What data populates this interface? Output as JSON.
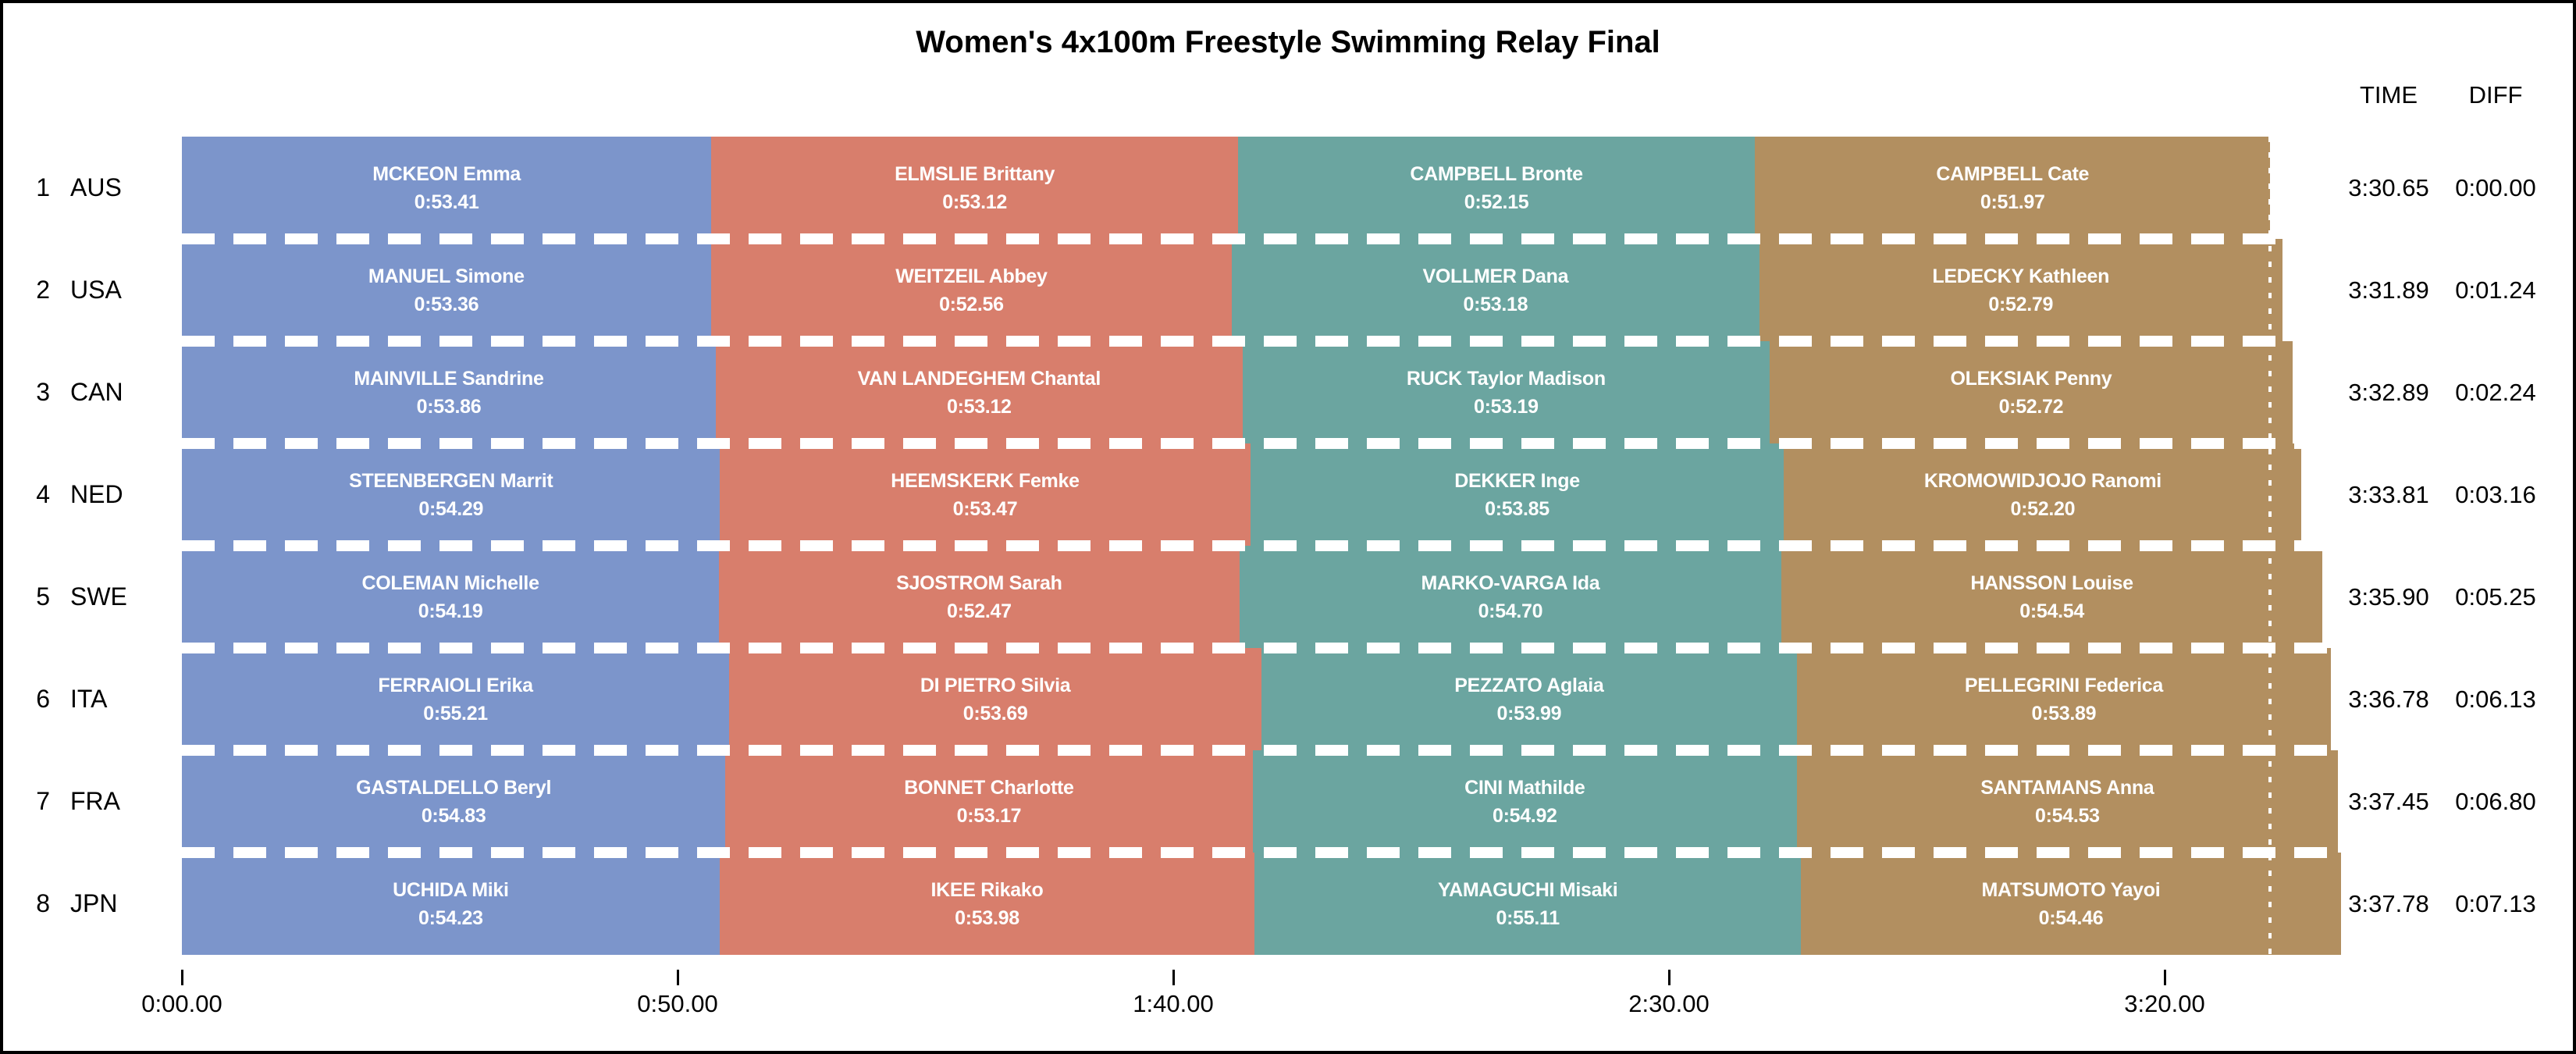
{
  "title": "Women's 4x100m Freestyle Swimming Relay Final",
  "columns": {
    "time_header": "TIME",
    "diff_header": "DIFF"
  },
  "chart_data": {
    "type": "bar",
    "orientation": "horizontal",
    "stacked": true,
    "title": "Women's 4x100m Freestyle Swimming Relay Final",
    "x_axis": {
      "unit": "minutes:seconds",
      "range_seconds": [
        0,
        220
      ],
      "ticks": [
        {
          "seconds": 0,
          "label": "0:00.00"
        },
        {
          "seconds": 50,
          "label": "0:50.00"
        },
        {
          "seconds": 100,
          "label": "1:40.00"
        },
        {
          "seconds": 150,
          "label": "2:30.00"
        },
        {
          "seconds": 200,
          "label": "3:20.00"
        }
      ]
    },
    "leg_colors": [
      "#7C95CB",
      "#D87E6C",
      "#6BA5A0",
      "#B28F60"
    ],
    "reference_line_seconds": 210.65,
    "teams": [
      {
        "rank": "1",
        "noc": "AUS",
        "time": "3:30.65",
        "diff": "0:00.00",
        "total_seconds": 210.65,
        "legs": [
          {
            "name": "MCKEON Emma",
            "split": "0:53.41",
            "seconds": 53.41
          },
          {
            "name": "ELMSLIE Brittany",
            "split": "0:53.12",
            "seconds": 53.12
          },
          {
            "name": "CAMPBELL Bronte",
            "split": "0:52.15",
            "seconds": 52.15
          },
          {
            "name": "CAMPBELL Cate",
            "split": "0:51.97",
            "seconds": 51.97
          }
        ]
      },
      {
        "rank": "2",
        "noc": "USA",
        "time": "3:31.89",
        "diff": "0:01.24",
        "total_seconds": 211.89,
        "legs": [
          {
            "name": "MANUEL Simone",
            "split": "0:53.36",
            "seconds": 53.36
          },
          {
            "name": "WEITZEIL Abbey",
            "split": "0:52.56",
            "seconds": 52.56
          },
          {
            "name": "VOLLMER Dana",
            "split": "0:53.18",
            "seconds": 53.18
          },
          {
            "name": "LEDECKY Kathleen",
            "split": "0:52.79",
            "seconds": 52.79
          }
        ]
      },
      {
        "rank": "3",
        "noc": "CAN",
        "time": "3:32.89",
        "diff": "0:02.24",
        "total_seconds": 212.89,
        "legs": [
          {
            "name": "MAINVILLE Sandrine",
            "split": "0:53.86",
            "seconds": 53.86
          },
          {
            "name": "VAN LANDEGHEM Chantal",
            "split": "0:53.12",
            "seconds": 53.12
          },
          {
            "name": "RUCK Taylor Madison",
            "split": "0:53.19",
            "seconds": 53.19
          },
          {
            "name": "OLEKSIAK Penny",
            "split": "0:52.72",
            "seconds": 52.72
          }
        ]
      },
      {
        "rank": "4",
        "noc": "NED",
        "time": "3:33.81",
        "diff": "0:03.16",
        "total_seconds": 213.81,
        "legs": [
          {
            "name": "STEENBERGEN Marrit",
            "split": "0:54.29",
            "seconds": 54.29
          },
          {
            "name": "HEEMSKERK Femke",
            "split": "0:53.47",
            "seconds": 53.47
          },
          {
            "name": "DEKKER Inge",
            "split": "0:53.85",
            "seconds": 53.85
          },
          {
            "name": "KROMOWIDJOJO Ranomi",
            "split": "0:52.20",
            "seconds": 52.2
          }
        ]
      },
      {
        "rank": "5",
        "noc": "SWE",
        "time": "3:35.90",
        "diff": "0:05.25",
        "total_seconds": 215.9,
        "legs": [
          {
            "name": "COLEMAN Michelle",
            "split": "0:54.19",
            "seconds": 54.19
          },
          {
            "name": "SJOSTROM Sarah",
            "split": "0:52.47",
            "seconds": 52.47
          },
          {
            "name": "MARKO-VARGA Ida",
            "split": "0:54.70",
            "seconds": 54.7
          },
          {
            "name": "HANSSON Louise",
            "split": "0:54.54",
            "seconds": 54.54
          }
        ]
      },
      {
        "rank": "6",
        "noc": "ITA",
        "time": "3:36.78",
        "diff": "0:06.13",
        "total_seconds": 216.78,
        "legs": [
          {
            "name": "FERRAIOLI Erika",
            "split": "0:55.21",
            "seconds": 55.21
          },
          {
            "name": "DI PIETRO Silvia",
            "split": "0:53.69",
            "seconds": 53.69
          },
          {
            "name": "PEZZATO Aglaia",
            "split": "0:53.99",
            "seconds": 53.99
          },
          {
            "name": "PELLEGRINI Federica",
            "split": "0:53.89",
            "seconds": 53.89
          }
        ]
      },
      {
        "rank": "7",
        "noc": "FRA",
        "time": "3:37.45",
        "diff": "0:06.80",
        "total_seconds": 217.45,
        "legs": [
          {
            "name": "GASTALDELLO Beryl",
            "split": "0:54.83",
            "seconds": 54.83
          },
          {
            "name": "BONNET Charlotte",
            "split": "0:53.17",
            "seconds": 53.17
          },
          {
            "name": "CINI Mathilde",
            "split": "0:54.92",
            "seconds": 54.92
          },
          {
            "name": "SANTAMANS Anna",
            "split": "0:54.53",
            "seconds": 54.53
          }
        ]
      },
      {
        "rank": "8",
        "noc": "JPN",
        "time": "3:37.78",
        "diff": "0:07.13",
        "total_seconds": 217.78,
        "legs": [
          {
            "name": "UCHIDA Miki",
            "split": "0:54.23",
            "seconds": 54.23
          },
          {
            "name": "IKEE Rikako",
            "split": "0:53.98",
            "seconds": 53.98
          },
          {
            "name": "YAMAGUCHI Misaki",
            "split": "0:55.11",
            "seconds": 55.11
          },
          {
            "name": "MATSUMOTO Yayoi",
            "split": "0:54.46",
            "seconds": 54.46
          }
        ]
      }
    ]
  }
}
